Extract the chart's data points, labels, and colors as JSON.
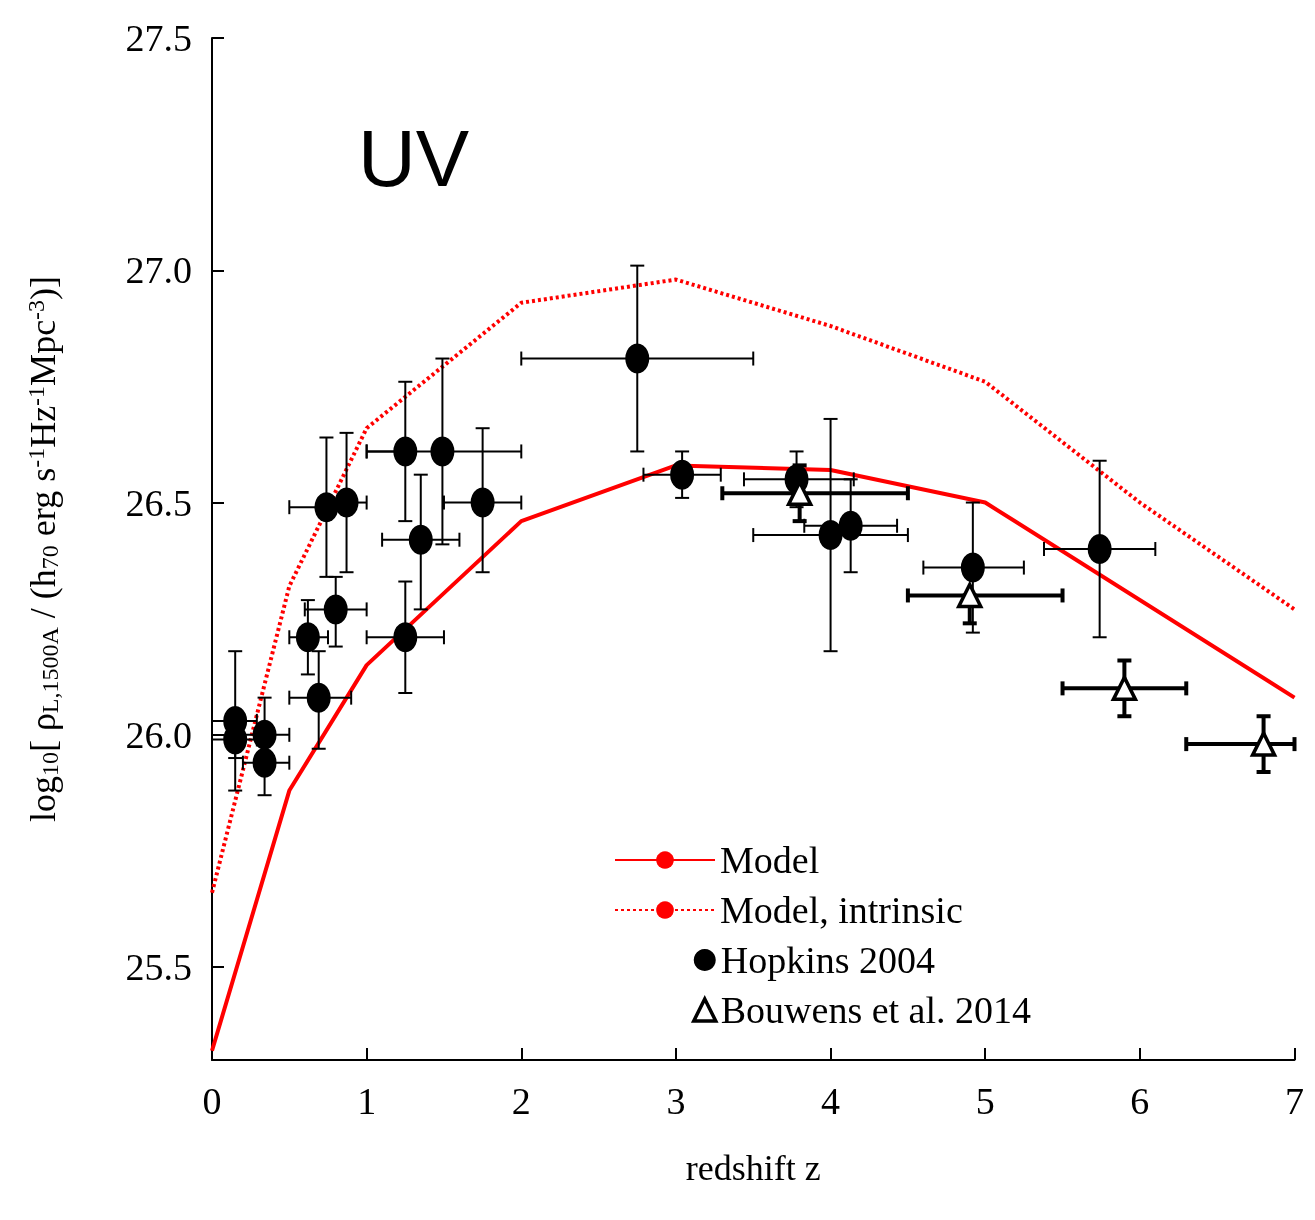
{
  "chart_data": {
    "type": "scatter",
    "xlabel": "redshift z",
    "ylabel": "log$_{10}$[ ρ$_{L,1500A}$ / (h$_{70}$ erg s$^{-1}$Hz$^{-1}$Mpc$^{-3}$)]",
    "annotations": [
      "UV"
    ],
    "xlim": [
      0,
      7
    ],
    "xticks": [
      0,
      1,
      2,
      3,
      4,
      5,
      6,
      7
    ],
    "ylim": [
      25.3,
      27.5
    ],
    "yticks": [
      {
        "value": 25.5,
        "label": "25.5"
      },
      {
        "value": 26,
        "label": "26.0"
      },
      {
        "value": 26.5,
        "label": "26.5"
      },
      {
        "value": 27,
        "label": "27.0"
      },
      {
        "value": 27.5,
        "label": "27.5"
      }
    ],
    "grid": false,
    "legend": "bottom right",
    "series": [
      {
        "name": "Model",
        "type": "line",
        "color": "#ff0000",
        "line_style": "solid",
        "marker": "none",
        "x": [
          0,
          0.5,
          1,
          2,
          3,
          4,
          5,
          7
        ],
        "values": [
          25.32,
          25.88,
          26.15,
          26.46,
          26.58,
          26.57,
          26.5,
          26.08
        ]
      },
      {
        "name": "Model, intrinsic",
        "type": "line",
        "color": "#ff0000",
        "line_style": "dotted",
        "marker": "none",
        "x": [
          0,
          0.5,
          1,
          2,
          3,
          4,
          5,
          6,
          7
        ],
        "values": [
          25.66,
          26.32,
          26.66,
          26.93,
          26.98,
          26.88,
          26.76,
          26.5,
          26.27
        ]
      },
      {
        "name": "Hopkins 2004",
        "type": "scatter",
        "color": "#000000",
        "marker": "circle",
        "x": [
          0.15,
          0.15,
          0.34,
          0.34,
          0.69,
          0.62,
          0.8,
          0.74,
          0.87,
          1.25,
          1.49,
          1.35,
          1.25,
          1.75,
          2.75,
          3.04,
          3.78,
          4.0,
          4.13,
          4.92,
          5.74
        ],
        "values": [
          26.03,
          25.99,
          26.0,
          25.94,
          26.08,
          26.21,
          26.27,
          26.49,
          26.5,
          26.61,
          26.61,
          26.42,
          26.21,
          26.5,
          26.81,
          26.56,
          26.55,
          26.43,
          26.45,
          26.36,
          26.4
        ],
        "errors": [
          [
            25.95,
            26.18
          ],
          [
            25.88,
            25.99
          ],
          [
            26.0,
            26.08
          ],
          [
            25.87,
            25.94
          ],
          [
            25.97,
            26.18
          ],
          [
            26.13,
            26.29
          ],
          [
            26.19,
            26.34
          ],
          [
            26.34,
            26.64
          ],
          [
            26.35,
            26.65
          ],
          [
            26.46,
            26.76
          ],
          [
            26.41,
            26.81
          ],
          [
            26.27,
            26.56
          ],
          [
            26.09,
            26.33
          ],
          [
            26.35,
            26.66
          ],
          [
            26.61,
            27.01
          ],
          [
            26.51,
            26.61
          ],
          [
            26.49,
            26.61
          ],
          [
            26.18,
            26.68
          ],
          [
            26.35,
            26.55
          ],
          [
            26.22,
            26.5
          ],
          [
            26.21,
            26.59
          ]
        ],
        "xerrors": [
          [
            0,
            0.29
          ],
          [
            0,
            0.29
          ],
          [
            0.2,
            0.5
          ],
          [
            0.2,
            0.5
          ],
          [
            0.5,
            0.9
          ],
          [
            0.5,
            0.75
          ],
          [
            0.6,
            1.0
          ],
          [
            0.5,
            0.74
          ],
          [
            0.87,
            1.0
          ],
          [
            1.0,
            1.25
          ],
          [
            1.0,
            2.0
          ],
          [
            1.1,
            1.6
          ],
          [
            1.0,
            1.5
          ],
          [
            1.5,
            2.0
          ],
          [
            2.0,
            3.5
          ],
          [
            2.79,
            3.29
          ],
          [
            3.44,
            4.15
          ],
          [
            3.5,
            4.5
          ],
          [
            3.83,
            4.43
          ],
          [
            4.6,
            5.25
          ],
          [
            5.38,
            6.1
          ]
        ]
      },
      {
        "name": "Bouwens et al. 2014",
        "type": "scatter",
        "color": "#000000",
        "marker": "triangle",
        "x": [
          3.8,
          4.9,
          5.9,
          6.8
        ],
        "values": [
          26.52,
          26.3,
          26.1,
          25.98
        ],
        "errors": [
          [
            26.46,
            26.58
          ],
          [
            26.24,
            26.3
          ],
          [
            26.04,
            26.16
          ],
          [
            25.92,
            26.04
          ]
        ],
        "xerrors": [
          [
            3.3,
            4.5
          ],
          [
            4.5,
            5.5
          ],
          [
            5.5,
            6.3
          ],
          [
            6.3,
            7.0
          ]
        ]
      }
    ]
  }
}
